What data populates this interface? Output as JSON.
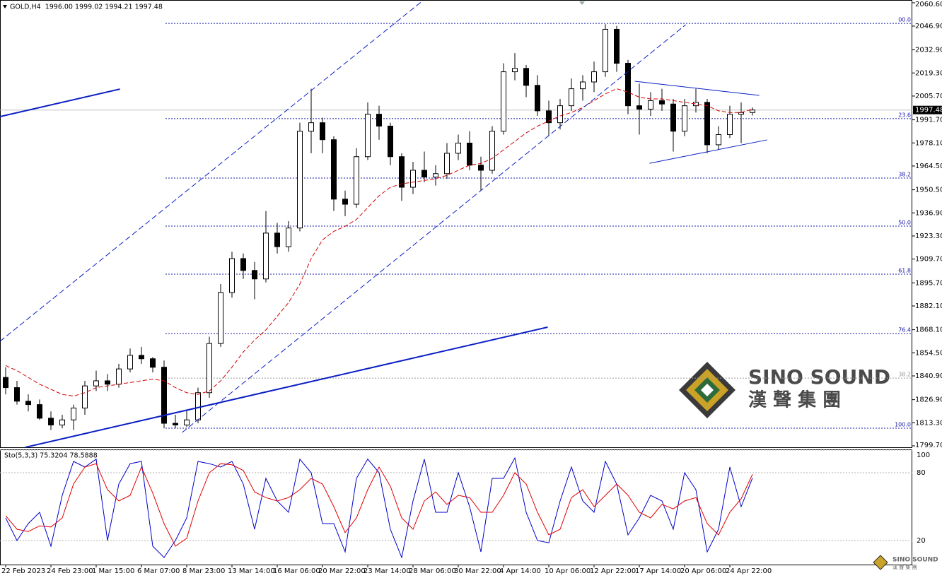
{
  "chart_data": [
    {
      "type": "candlestick",
      "title": "GOLD,H4  1996.00 1999.02 1994.21 1997.48",
      "categories": [
        "22 Feb 2023",
        null,
        null,
        null,
        "24 Feb 23:00",
        null,
        null,
        null,
        "1 Mar 15:00",
        null,
        null,
        null,
        "6 Mar 07:00",
        null,
        null,
        null,
        "8 Mar 23:00",
        null,
        null,
        null,
        "13 Mar 14:00",
        null,
        null,
        null,
        "16 Mar 06:00",
        null,
        null,
        null,
        "20 Mar 22:00",
        null,
        null,
        null,
        "23 Mar 14:00",
        null,
        null,
        null,
        "28 Mar 06:00",
        null,
        null,
        null,
        "30 Mar 22:00",
        null,
        null,
        null,
        "4 Apr 14:00",
        null,
        null,
        null,
        "10 Apr 06:00",
        null,
        null,
        null,
        "12 Apr 22:00",
        null,
        null,
        null,
        "17 Apr 14:00",
        null,
        null,
        null,
        "20 Apr 06:00",
        null,
        null,
        null,
        "24 Apr 22:00",
        null,
        null
      ],
      "open": [
        1840,
        1834,
        1826,
        1824,
        1816,
        1812,
        1815,
        1822,
        1835,
        1838,
        1836,
        1845,
        1853,
        1851,
        1846,
        1813,
        1812,
        1815,
        1831,
        1860,
        1890,
        1910,
        1903,
        1898,
        1925,
        1917,
        1928,
        1985,
        1990,
        1980,
        1945,
        1942,
        1970,
        1995,
        1988,
        1970,
        1952,
        1962,
        1958,
        1960,
        1972,
        1978,
        1965,
        1962,
        1985,
        2020,
        2022,
        2012,
        1997,
        1990,
        2000,
        2010,
        2014,
        2020,
        2045,
        2025,
        2000,
        1998,
        2003,
        2001,
        1985,
        2000,
        2002,
        1977,
        1983,
        1995,
        1996
      ],
      "high": [
        1846,
        1838,
        1830,
        1827,
        1820,
        1818,
        1824,
        1838,
        1844,
        1842,
        1848,
        1857,
        1858,
        1852,
        1850,
        1818,
        1821,
        1834,
        1864,
        1895,
        1914,
        1913,
        1908,
        1938,
        1931,
        1932,
        1990,
        2010,
        1993,
        1982,
        1950,
        1975,
        2002,
        2000,
        1990,
        1972,
        1967,
        1973,
        1965,
        1978,
        1983,
        1985,
        1970,
        1988,
        2025,
        2031,
        2024,
        2018,
        2003,
        2004,
        2016,
        2018,
        2026,
        2048,
        2047,
        2027,
        2013,
        2008,
        2010,
        2004,
        2004,
        2010,
        2004,
        1988,
        2000,
        2002,
        1999.02
      ],
      "low": [
        1830,
        1824,
        1820,
        1815,
        1809,
        1810,
        1809,
        1818,
        1832,
        1832,
        1834,
        1843,
        1848,
        1843,
        1810,
        1810,
        1811,
        1813,
        1828,
        1858,
        1887,
        1898,
        1886,
        1896,
        1913,
        1914,
        1926,
        1972,
        1972,
        1938,
        1935,
        1940,
        1968,
        1980,
        1965,
        1944,
        1948,
        1955,
        1953,
        1957,
        1968,
        1962,
        1950,
        1960,
        1983,
        2015,
        2005,
        1994,
        1982,
        1986,
        1997,
        2003,
        2008,
        2017,
        2020,
        1995,
        1983,
        1994,
        1997,
        1973,
        1982,
        1996,
        1972,
        1974,
        1981,
        1978,
        1994.21
      ],
      "close": [
        1834,
        1826,
        1824,
        1816,
        1812,
        1815,
        1822,
        1835,
        1838,
        1836,
        1845,
        1853,
        1851,
        1846,
        1813,
        1812,
        1815,
        1831,
        1860,
        1890,
        1910,
        1903,
        1898,
        1925,
        1917,
        1928,
        1985,
        1990,
        1980,
        1945,
        1942,
        1970,
        1995,
        1988,
        1970,
        1952,
        1962,
        1958,
        1960,
        1972,
        1978,
        1965,
        1962,
        1985,
        2020,
        2022,
        2012,
        1997,
        1990,
        2000,
        2010,
        2014,
        2020,
        2045,
        2025,
        2000,
        1998,
        2003,
        2001,
        1985,
        2000,
        2002,
        1977,
        1983,
        1995,
        1996,
        1997.48
      ],
      "ma": {
        "color": "#d40000",
        "values": [
          1847,
          1844,
          1840,
          1836,
          1833,
          1830,
          1829,
          1831,
          1834,
          1835,
          1836,
          1837,
          1838,
          1839,
          1838,
          1834,
          1831,
          1830,
          1832,
          1838,
          1846,
          1855,
          1862,
          1868,
          1876,
          1884,
          1895,
          1910,
          1921,
          1926,
          1929,
          1933,
          1940,
          1947,
          1952,
          1954,
          1955,
          1956,
          1957,
          1959,
          1962,
          1965,
          1966,
          1969,
          1974,
          1979,
          1984,
          1988,
          1991,
          1994,
          1996,
          1999,
          2003,
          2007,
          2010,
          2008,
          2005,
          2004,
          2004,
          2003,
          2002,
          2001,
          2000,
          1997,
          1996,
          1996,
          1998
        ]
      },
      "ylim": [
        1799.7,
        2060.6
      ],
      "yticks": [
        {
          "value": 2060.6,
          "label": "2060.60"
        },
        {
          "value": 2046.9,
          "label": "2046.90"
        },
        {
          "value": 2032.9,
          "label": "2032.90"
        },
        {
          "value": 2019.3,
          "label": "2019.30"
        },
        {
          "value": 2005.7,
          "label": "2005.70"
        },
        {
          "value": 1991.7,
          "label": "1991.70"
        },
        {
          "value": 1978.1,
          "label": "1978.10"
        },
        {
          "value": 1964.5,
          "label": "1964.50"
        },
        {
          "value": 1950.5,
          "label": "1950.50"
        },
        {
          "value": 1936.9,
          "label": "1936.90"
        },
        {
          "value": 1923.3,
          "label": "1923.30"
        },
        {
          "value": 1909.7,
          "label": "1909.70"
        },
        {
          "value": 1895.7,
          "label": "1895.70"
        },
        {
          "value": 1882.1,
          "label": "1882.10"
        },
        {
          "value": 1868.1,
          "label": "1868.10"
        },
        {
          "value": 1854.5,
          "label": "1854.50"
        },
        {
          "value": 1840.9,
          "label": "1840.90"
        },
        {
          "value": 1826.9,
          "label": "1826.90"
        },
        {
          "value": 1813.3,
          "label": "1813.30"
        },
        {
          "value": 1799.7,
          "label": "1799.70"
        }
      ],
      "last_price": {
        "value": 1997.48,
        "label": "1997.48"
      },
      "fib_levels": [
        {
          "value": 2048.5,
          "label": "00.0",
          "color": "#1a1aaa"
        },
        {
          "value": 1992.4,
          "label": "23.6",
          "color": "#1a1aaa"
        },
        {
          "value": 1957.4,
          "label": "38.2",
          "color": "#1a1aaa"
        },
        {
          "value": 1929.1,
          "label": "50.0",
          "color": "#1a1aaa"
        },
        {
          "value": 1900.8,
          "label": "61.8",
          "color": "#1a1aaa"
        },
        {
          "value": 1865.8,
          "label": "76.4",
          "color": "#1a1aaa"
        },
        {
          "value": 1839.6,
          "label": "38.2",
          "color": "#9a9a9a"
        },
        {
          "value": 1810.1,
          "label": "100.0",
          "color": "#1a1aaa"
        }
      ],
      "trendlines": [
        {
          "points": [
            [
              -0.5,
              1993.6
            ],
            [
              10.1,
              2009.8
            ]
          ],
          "color": "#0a1fc4",
          "width": 2,
          "dashed": false
        },
        {
          "points": [
            [
              1.7,
              1798.8
            ],
            [
              47.9,
              1869.6
            ]
          ],
          "color": "#0a1fc4",
          "width": 2,
          "dashed": false
        },
        {
          "points": [
            [
              -0.5,
              1861.3
            ],
            [
              36.7,
              2061
            ]
          ],
          "color": "#0a1fc4",
          "width": 1,
          "dashed": true
        },
        {
          "points": [
            [
              15.6,
              1807.6
            ],
            [
              60.1,
              2047.7
            ]
          ],
          "color": "#0a1fc4",
          "width": 1,
          "dashed": true
        },
        {
          "points": [
            [
              55.6,
              2014.4
            ],
            [
              66.6,
              2006.1
            ]
          ],
          "color": "#0a1fc4",
          "width": 1,
          "dashed": false
        },
        {
          "points": [
            [
              56.9,
              1966.1
            ],
            [
              67.3,
              1979.9
            ]
          ],
          "color": "#0a1fc4",
          "width": 1,
          "dashed": false
        }
      ],
      "watermark": {
        "name": "SINO SOUND",
        "chinese": "漢 聲 集 團"
      }
    },
    {
      "type": "line",
      "title": "Sto(5,3,3) 75.3204 78.5888",
      "series": [
        {
          "color": "#0000c8",
          "values": [
            40,
            20,
            35,
            45,
            15,
            60,
            90,
            85,
            92,
            20,
            70,
            88,
            90,
            15,
            5,
            20,
            40,
            90,
            88,
            85,
            90,
            70,
            30,
            75,
            55,
            45,
            92,
            80,
            35,
            35,
            10,
            75,
            92,
            80,
            30,
            5,
            55,
            92,
            45,
            45,
            80,
            50,
            10,
            75,
            75,
            93,
            45,
            20,
            18,
            55,
            85,
            55,
            45,
            90,
            70,
            25,
            40,
            60,
            55,
            30,
            80,
            65,
            10,
            30,
            85,
            50,
            75.3204
          ]
        },
        {
          "color": "#e00000",
          "values": [
            42,
            30,
            28,
            33,
            32,
            40,
            70,
            85,
            88,
            65,
            55,
            60,
            85,
            62,
            35,
            15,
            22,
            55,
            80,
            88,
            87,
            82,
            63,
            58,
            55,
            58,
            65,
            75,
            70,
            50,
            27,
            40,
            65,
            85,
            68,
            40,
            30,
            55,
            63,
            52,
            60,
            58,
            45,
            45,
            60,
            80,
            70,
            45,
            25,
            30,
            58,
            65,
            50,
            60,
            70,
            60,
            45,
            40,
            52,
            48,
            55,
            58,
            35,
            25,
            45,
            57,
            78.5888
          ]
        }
      ],
      "ylim": [
        0,
        100
      ],
      "yticks": [
        100,
        80,
        20
      ]
    }
  ]
}
